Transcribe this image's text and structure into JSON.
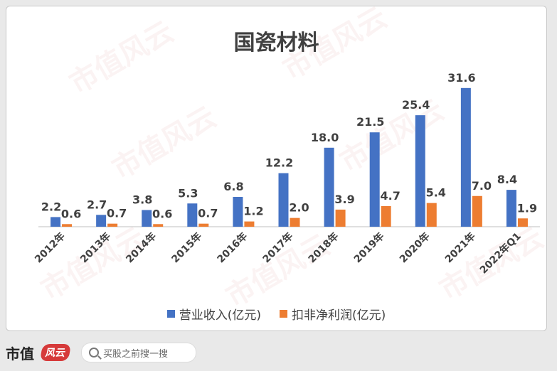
{
  "footer": {
    "brand": "市值",
    "brand_logo": "风云",
    "search_placeholder": "买股之前搜一搜"
  },
  "colors": {
    "revenue": "#4472c4",
    "profit": "#ed7d31"
  },
  "chart_data": {
    "type": "bar",
    "title": "国瓷材料",
    "categories": [
      "2012年",
      "2013年",
      "2014年",
      "2015年",
      "2016年",
      "2017年",
      "2018年",
      "2019年",
      "2020年",
      "2021年",
      "2022年Q1"
    ],
    "series": [
      {
        "name": "营业收入(亿元)",
        "values": [
          2.2,
          2.7,
          3.8,
          5.3,
          6.8,
          12.2,
          18.0,
          21.5,
          25.4,
          31.6,
          8.4
        ]
      },
      {
        "name": "扣非净利润(亿元)",
        "values": [
          0.6,
          0.7,
          0.6,
          0.7,
          1.2,
          2.0,
          3.9,
          4.7,
          5.4,
          7.0,
          1.9
        ]
      }
    ],
    "xlabel": "",
    "ylabel": "",
    "ylim": [
      0,
      34
    ],
    "grid": false,
    "legend_position": "bottom"
  }
}
